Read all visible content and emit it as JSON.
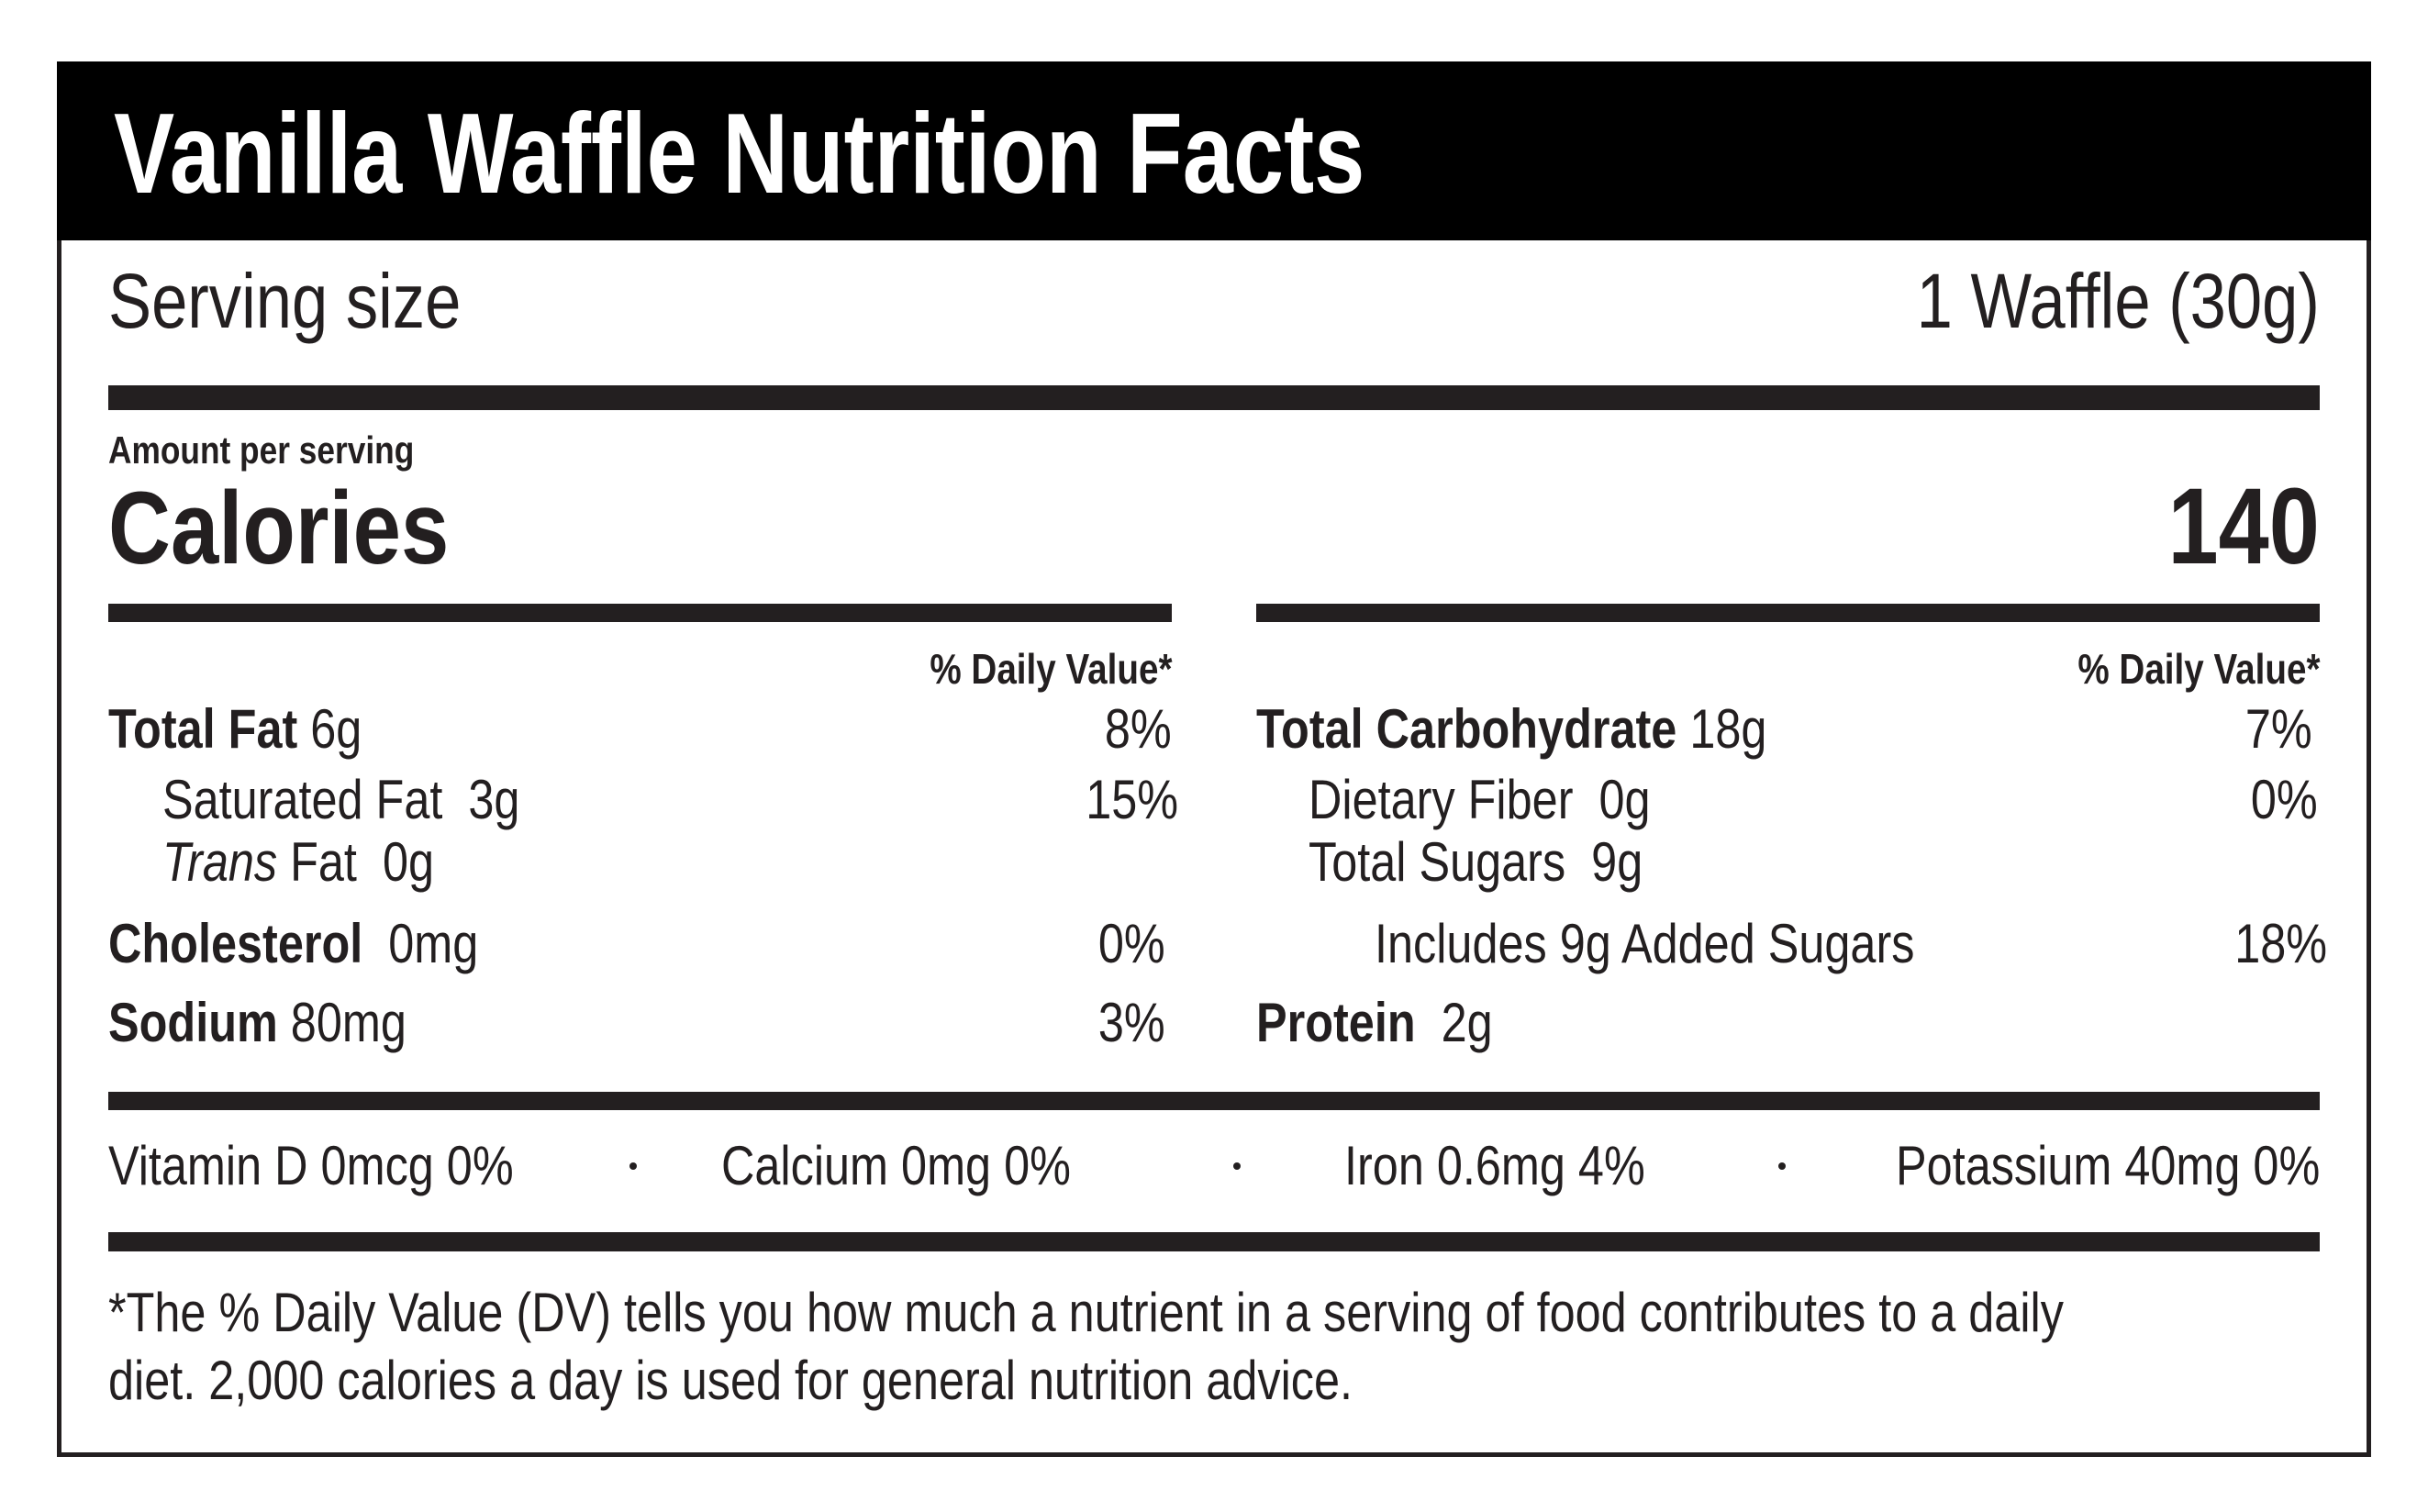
{
  "title": "Vanilla Waffle Nutrition Facts",
  "serving": {
    "label": "Serving size",
    "value": "1 Waffle (30g)"
  },
  "amount_per_serving": "Amount per serving",
  "calories": {
    "label": "Calories",
    "value": "140"
  },
  "dv_header": "% Daily Value*",
  "left": [
    {
      "name": "Total Fat",
      "amount": "6g",
      "dv": "8%"
    },
    {
      "name": "Saturated Fat",
      "amount": "3g",
      "dv": "15%"
    },
    {
      "name_italic": "Trans",
      "name": "Fat",
      "amount": "0g"
    },
    {
      "name": "Cholesterol",
      "amount": "0mg",
      "dv": "0%"
    },
    {
      "name": "Sodium",
      "amount": "80mg",
      "dv": "3%"
    }
  ],
  "right": [
    {
      "name": "Total Carbohydrate",
      "amount": "18g",
      "dv": "7%"
    },
    {
      "name": "Dietary Fiber",
      "amount": "0g",
      "dv": "0%"
    },
    {
      "name": "Total Sugars",
      "amount": "9g"
    },
    {
      "name": "Includes 9g Added Sugars",
      "dv": "18%"
    },
    {
      "name": "Protein",
      "amount": "2g"
    }
  ],
  "vitamins": [
    "Vitamin D 0mcg 0%",
    "Calcium 0mg 0%",
    "Iron 0.6mg 4%",
    "Potassium 40mg 0%"
  ],
  "footnote": [
    "*The % Daily Value (DV) tells you how much a nutrient in a serving of food contributes to a daily",
    "diet. 2,000 calories a day is used for general nutrition advice."
  ]
}
